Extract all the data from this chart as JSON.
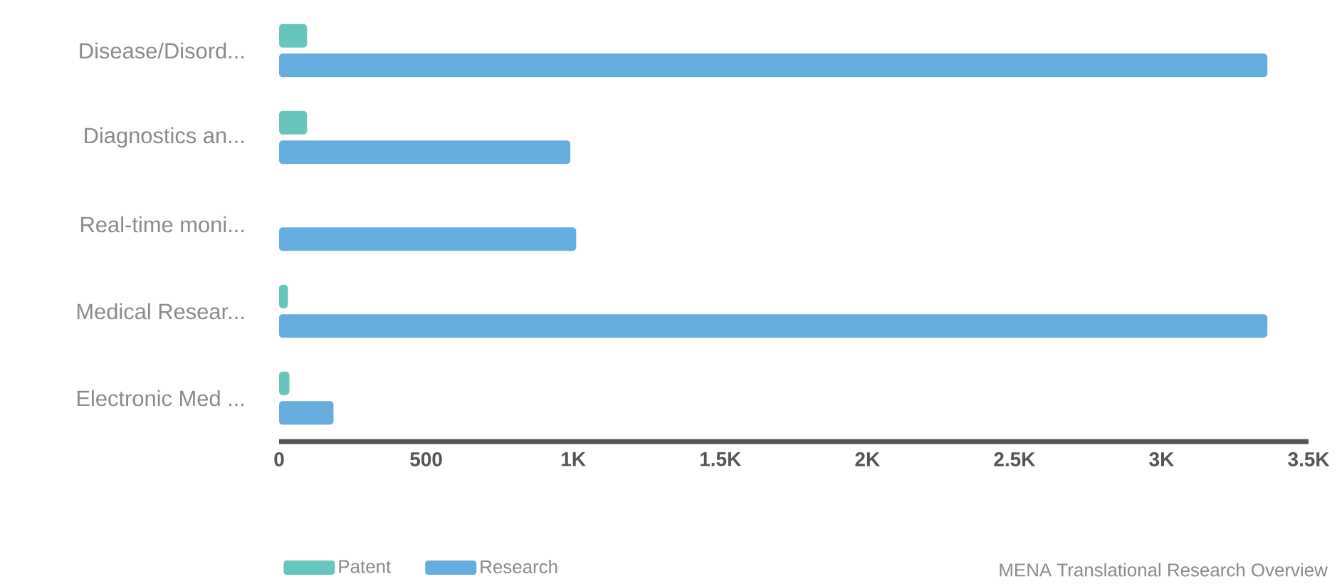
{
  "chart_data": {
    "type": "bar",
    "orientation": "horizontal",
    "categories": [
      "Disease/Disord...",
      "Diagnostics an...",
      "Real-time moni...",
      "Medical Resear...",
      "Electronic Med ..."
    ],
    "series": [
      {
        "name": "Patent",
        "color": "#66c6be",
        "values": [
          95,
          95,
          null,
          30,
          35
        ]
      },
      {
        "name": "Research",
        "color": "#66addf",
        "values": [
          3360,
          990,
          1010,
          3360,
          185
        ]
      }
    ],
    "xlim": [
      0,
      3500
    ],
    "xticks": [
      0,
      500,
      {
        "value": 1000,
        "label": "1K"
      },
      {
        "value": 1500,
        "label": "1.5K"
      },
      {
        "value": 2000,
        "label": "2K"
      },
      {
        "value": 2500,
        "label": "2.5K"
      },
      {
        "value": 3000,
        "label": "3K"
      },
      {
        "value": 3500,
        "label": "3.5K"
      }
    ],
    "grid": false,
    "legend": "bottom",
    "annotations": [
      "MENA Translational Research Overview"
    ]
  }
}
